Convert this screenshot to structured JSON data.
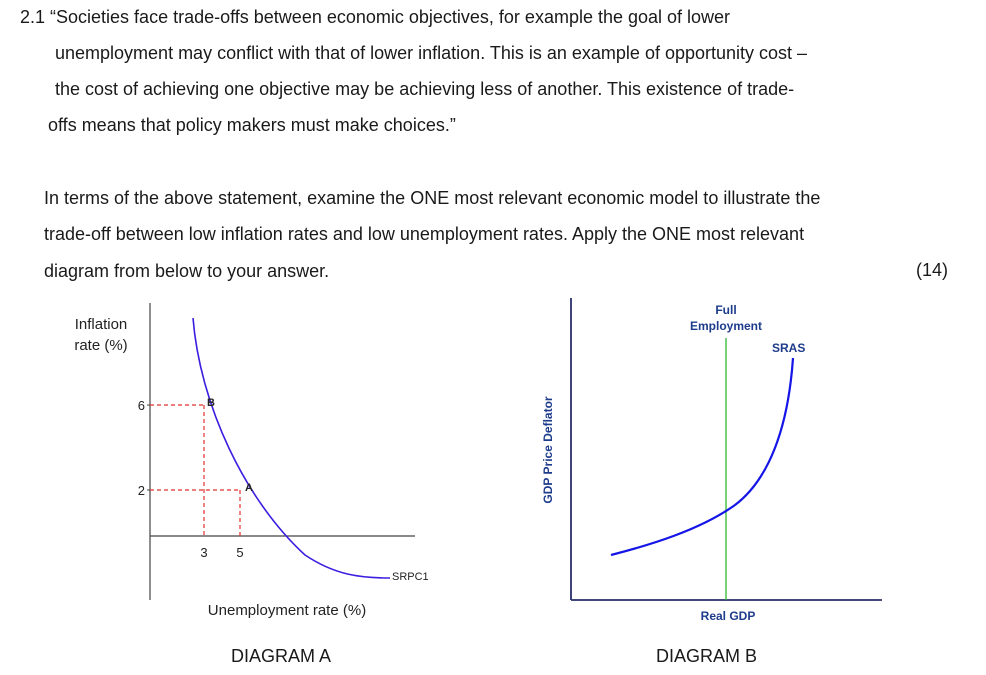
{
  "quote": {
    "line1": "2.1 “Societies face trade-offs between economic objectives, for example the goal of lower",
    "line2": "unemployment may conflict with that of lower inflation. This is an example of opportunity cost –",
    "line3": "the cost of achieving one objective may be achieving less of another. This existence of trade-",
    "line4": "offs means that policy makers must make choices.”"
  },
  "question": {
    "line1": "In terms of the above statement, examine the ONE most relevant economic model to illustrate the",
    "line2": "trade-off between low inflation rates and low unemployment rates. Apply the ONE most relevant",
    "line3": "diagram from below to your answer.",
    "marks": "(14)"
  },
  "chart_data": [
    {
      "type": "line",
      "caption": "DIAGRAM A",
      "ylabel_line1": "Inflation",
      "ylabel_line2": "rate (%)",
      "xlabel": "Unemployment rate (%)",
      "y_ticks": [
        "6",
        "2"
      ],
      "x_ticks": [
        "3",
        "5"
      ],
      "points": [
        {
          "label": "B",
          "x": 3,
          "y": 6
        },
        {
          "label": "A",
          "x": 5,
          "y": 2
        }
      ],
      "series": [
        {
          "name": "SRPC1"
        }
      ],
      "curve_color": "#3b1fe0",
      "guide_color": "#e03030"
    },
    {
      "type": "line",
      "caption": "DIAGRAM B",
      "ylabel": "GDP Price Deflator",
      "xlabel": "Real GDP",
      "vline_label_line1": "Full",
      "vline_label_line2": "Employment",
      "series": [
        {
          "name": "SRAS"
        }
      ],
      "curve_color": "#1515e8",
      "vline_color": "#2fb82f",
      "label_color": "#1e3c8c"
    }
  ]
}
